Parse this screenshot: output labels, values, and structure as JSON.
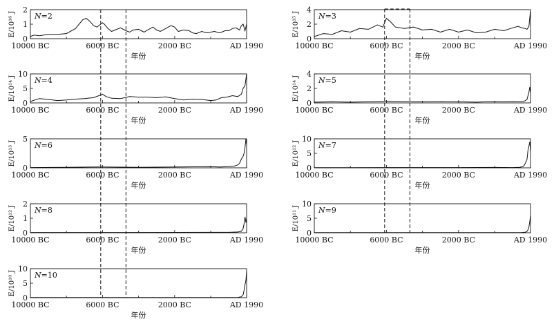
{
  "chart_data": [
    {
      "type": "line",
      "n_label": "N=2",
      "n_symbol": "N",
      "n_value": "=2",
      "ylabel": "E/10¹⁶ J",
      "ylim": [
        0,
        2
      ],
      "yticks": [
        "0",
        "1",
        "2"
      ],
      "xlabel": "年份",
      "xticks": [
        "10000 BC",
        "6000 BC",
        "2000 BC",
        "AD 1990"
      ],
      "x": [
        -10000,
        -9800,
        -9500,
        -9000,
        -8500,
        -8000,
        -7500,
        -7300,
        -7100,
        -6900,
        -6700,
        -6500,
        -6300,
        -6100,
        -6000,
        -5900,
        -5700,
        -5500,
        -5300,
        -5000,
        -4700,
        -4500,
        -4300,
        -4000,
        -3700,
        -3500,
        -3200,
        -3000,
        -2800,
        -2500,
        -2200,
        -2000,
        -1800,
        -1500,
        -1200,
        -1000,
        -800,
        -500,
        -200,
        0,
        200,
        500,
        800,
        1000,
        1200,
        1400,
        1600,
        1700,
        1800,
        1900,
        1990
      ],
      "y": [
        0.15,
        0.25,
        0.2,
        0.3,
        0.3,
        0.35,
        0.7,
        1.0,
        1.3,
        1.4,
        1.2,
        0.9,
        0.8,
        1.0,
        1.1,
        1.0,
        0.7,
        0.5,
        0.6,
        0.75,
        0.55,
        0.45,
        0.6,
        0.65,
        0.45,
        0.6,
        0.8,
        0.6,
        0.5,
        0.7,
        0.9,
        0.8,
        0.5,
        0.6,
        0.55,
        0.4,
        0.35,
        0.5,
        0.4,
        0.45,
        0.5,
        0.4,
        0.55,
        0.55,
        0.7,
        0.75,
        0.6,
        0.9,
        1.0,
        0.55,
        1.0
      ]
    },
    {
      "type": "line",
      "n_label": "N=3",
      "n_symbol": "N",
      "n_value": "=3",
      "ylabel": "E/10¹⁵ J",
      "ylim": [
        0,
        4
      ],
      "yticks": [
        "0",
        "2",
        "4"
      ],
      "xlabel": "年份",
      "xticks": [
        "10000 BC",
        "6000 BC",
        "2000 BC",
        "AD 1990"
      ],
      "x": [
        -10000,
        -9500,
        -9000,
        -8500,
        -8000,
        -7500,
        -7000,
        -6500,
        -6200,
        -6000,
        -5800,
        -5500,
        -5000,
        -4500,
        -4000,
        -3500,
        -3000,
        -2500,
        -2000,
        -1500,
        -1000,
        -500,
        0,
        500,
        1000,
        1300,
        1500,
        1700,
        1800,
        1900,
        1990
      ],
      "y": [
        0.3,
        0.7,
        0.6,
        1.1,
        0.9,
        1.4,
        1.3,
        1.9,
        1.6,
        2.8,
        2.4,
        1.6,
        1.4,
        1.6,
        1.2,
        1.3,
        0.9,
        1.3,
        0.9,
        1.2,
        0.8,
        0.9,
        1.3,
        1.1,
        1.5,
        1.7,
        1.5,
        1.4,
        1.3,
        1.7,
        3.9
      ]
    },
    {
      "type": "line",
      "n_label": "N=4",
      "n_symbol": "N",
      "n_value": "=4",
      "ylabel": "E/10¹⁴ J",
      "ylim": [
        0,
        10
      ],
      "yticks": [
        "0",
        "5",
        "10"
      ],
      "xlabel": "年份",
      "xticks": [
        "10000 BC",
        "6000 BC",
        "2000 BC",
        "AD 1990"
      ],
      "x": [
        -10000,
        -9500,
        -9000,
        -8500,
        -8000,
        -7500,
        -7000,
        -6500,
        -6200,
        -6000,
        -5800,
        -5500,
        -5000,
        -4500,
        -4000,
        -3500,
        -3000,
        -2500,
        -2000,
        -1500,
        -1000,
        -500,
        0,
        300,
        600,
        900,
        1200,
        1500,
        1700,
        1800,
        1900,
        1990
      ],
      "y": [
        0.5,
        1.5,
        1.2,
        0.8,
        1.0,
        1.3,
        1.5,
        1.8,
        2.5,
        3.0,
        2.2,
        1.6,
        1.5,
        2.2,
        2.0,
        2.0,
        1.8,
        2.1,
        1.5,
        1.0,
        1.3,
        1.2,
        0.8,
        1.0,
        1.8,
        2.0,
        2.5,
        2.2,
        3.0,
        5.0,
        6.0,
        10.0
      ]
    },
    {
      "type": "line",
      "n_label": "N=5",
      "n_symbol": "N",
      "n_value": "=5",
      "ylabel": "E/10¹⁴ J",
      "ylim": [
        0,
        4
      ],
      "yticks": [
        "0",
        "2",
        "4"
      ],
      "xlabel": "年份",
      "xticks": [
        "10000 BC",
        "6000 BC",
        "2000 BC",
        "AD 1990"
      ],
      "x": [
        -10000,
        -9000,
        -8000,
        -7000,
        -6000,
        -5000,
        -4000,
        -3000,
        -2000,
        -1000,
        0,
        500,
        1000,
        1500,
        1700,
        1800,
        1900,
        1950,
        1990
      ],
      "y": [
        0.1,
        0.15,
        0.1,
        0.15,
        0.25,
        0.2,
        0.15,
        0.2,
        0.15,
        0.1,
        0.2,
        0.15,
        0.2,
        0.15,
        0.3,
        0.5,
        1.5,
        2.2,
        1.3
      ]
    },
    {
      "type": "line",
      "n_label": "N=6",
      "n_symbol": "N",
      "n_value": "=6",
      "ylabel": "E/10¹³ J",
      "ylim": [
        0,
        5
      ],
      "yticks": [
        "0",
        "5"
      ],
      "xlabel": "年份",
      "xticks": [
        "10000 BC",
        "6000 BC",
        "2000 BC",
        "AD 1990"
      ],
      "x": [
        -10000,
        -8000,
        -6000,
        -4000,
        -2000,
        0,
        500,
        1000,
        1300,
        1500,
        1600,
        1700,
        1800,
        1850,
        1900,
        1950,
        1990
      ],
      "y": [
        0.05,
        0.1,
        0.15,
        0.1,
        0.15,
        0.2,
        0.15,
        0.2,
        0.3,
        0.5,
        0.8,
        1.5,
        2.0,
        2.5,
        3.5,
        5.0,
        4.0
      ]
    },
    {
      "type": "line",
      "n_label": "N=7",
      "n_symbol": "N",
      "n_value": "=7",
      "ylabel": "E/10¹² J",
      "ylim": [
        0,
        10
      ],
      "yticks": [
        "0",
        "5",
        "10"
      ],
      "xlabel": "年份",
      "xticks": [
        "10000 BC",
        "6000 BC",
        "2000 BC",
        "AD 1990"
      ],
      "x": [
        -10000,
        -6000,
        -2000,
        0,
        1000,
        1400,
        1600,
        1700,
        1800,
        1850,
        1900,
        1950,
        1990
      ],
      "y": [
        0.05,
        0.1,
        0.1,
        0.15,
        0.1,
        0.2,
        0.5,
        1.5,
        3.0,
        6.0,
        7.5,
        9.0,
        5.5
      ]
    },
    {
      "type": "line",
      "n_label": "N=8",
      "n_symbol": "N",
      "n_value": "=8",
      "ylabel": "E/10¹² J",
      "ylim": [
        0,
        2
      ],
      "yticks": [
        "0",
        "1",
        "2"
      ],
      "xlabel": "年份",
      "xticks": [
        "10000 BC",
        "6000 BC",
        "2000 BC",
        "AD 1990"
      ],
      "x": [
        -10000,
        -5000,
        0,
        1000,
        1500,
        1700,
        1800,
        1850,
        1900,
        1950,
        1990
      ],
      "y": [
        0.02,
        0.02,
        0.03,
        0.03,
        0.05,
        0.1,
        0.3,
        0.6,
        1.1,
        0.7,
        1.0
      ]
    },
    {
      "type": "line",
      "n_label": "N=9",
      "n_symbol": "N",
      "n_value": "=9",
      "ylabel": "E/10¹¹ J",
      "ylim": [
        0,
        10
      ],
      "yticks": [
        "0",
        "5",
        "10"
      ],
      "xlabel": "年份",
      "xticks": [
        "10000 BC",
        "6000 BC",
        "2000 BC",
        "AD 1990"
      ],
      "x": [
        -10000,
        -5000,
        0,
        1000,
        1500,
        1700,
        1800,
        1850,
        1900,
        1950,
        1990
      ],
      "y": [
        0.05,
        0.05,
        0.05,
        0.05,
        0.1,
        0.2,
        0.5,
        1.0,
        2.0,
        4.0,
        6.0
      ]
    },
    {
      "type": "line",
      "n_label": "N=10",
      "n_symbol": "N",
      "n_value": "=10",
      "ylabel": "E/10¹⁰ J",
      "ylim": [
        0,
        10
      ],
      "yticks": [
        "0",
        "5",
        "10"
      ],
      "xlabel": "年份",
      "xticks": [
        "10000 BC",
        "6000 BC",
        "2000 BC",
        "AD 1990"
      ],
      "x": [
        -10000,
        -5000,
        0,
        1000,
        1500,
        1700,
        1800,
        1850,
        1900,
        1950,
        1990
      ],
      "y": [
        0.05,
        0.05,
        0.05,
        0.05,
        0.1,
        0.3,
        1.0,
        2.5,
        4.5,
        6.0,
        9.0
      ]
    }
  ],
  "highlight": {
    "left_column_window": [
      -6100,
      -4700
    ],
    "right_column_window": [
      -6100,
      -4700
    ]
  }
}
